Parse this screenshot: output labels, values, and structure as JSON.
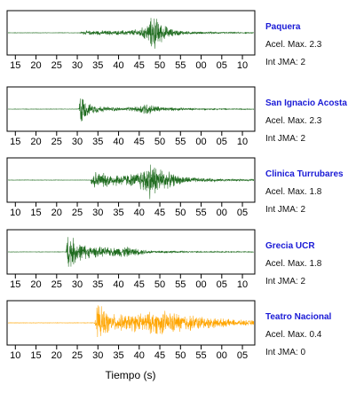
{
  "chart_data": {
    "type": "line",
    "xlabel": "Tiempo (s)",
    "accel_label": "Acel. Max.",
    "int_label": "Int JMA:",
    "x_unit": "seconds past the minute (wrapping at 60)",
    "panels": [
      {
        "station": "Paquera",
        "accel_max": "2.3",
        "int_jma": "2",
        "color": "#1e6b1e",
        "x_start": 13,
        "ticks": [
          "15",
          "20",
          "25",
          "30",
          "35",
          "40",
          "45",
          "50",
          "55",
          "00",
          "05",
          "10"
        ],
        "onset_s": 18.5,
        "envelope": [
          [
            17.5,
            0.01
          ],
          [
            18.5,
            0.09
          ],
          [
            20,
            0.11
          ],
          [
            23,
            0.12
          ],
          [
            27,
            0.11
          ],
          [
            29,
            0.14
          ],
          [
            31.5,
            0.18
          ],
          [
            33,
            0.3
          ],
          [
            34.5,
            0.55
          ],
          [
            35.2,
            0.95
          ],
          [
            36.2,
            0.75
          ],
          [
            37.5,
            0.45
          ],
          [
            40,
            0.18
          ],
          [
            44,
            0.08
          ],
          [
            50,
            0.04
          ],
          [
            60,
            0.02
          ]
        ]
      },
      {
        "station": "San Ignacio Acosta",
        "accel_max": "2.3",
        "int_jma": "2",
        "color": "#1e6b1e",
        "x_start": 13,
        "ticks": [
          "15",
          "20",
          "25",
          "30",
          "35",
          "40",
          "45",
          "50",
          "55",
          "00",
          "05",
          "10"
        ],
        "onset_s": 17.8,
        "envelope": [
          [
            17.3,
            0.01
          ],
          [
            17.8,
            0.95
          ],
          [
            18.5,
            0.55
          ],
          [
            20,
            0.25
          ],
          [
            24,
            0.12
          ],
          [
            28,
            0.08
          ],
          [
            31,
            0.12
          ],
          [
            33.5,
            0.33
          ],
          [
            35,
            0.22
          ],
          [
            38,
            0.1
          ],
          [
            44,
            0.05
          ],
          [
            50,
            0.03
          ],
          [
            60,
            0.02
          ]
        ]
      },
      {
        "station": "Clinica Turrubares",
        "accel_max": "1.8",
        "int_jma": "2",
        "color": "#1e6b1e",
        "x_start": 8,
        "ticks": [
          "10",
          "15",
          "20",
          "25",
          "30",
          "35",
          "40",
          "45",
          "50",
          "55",
          "00",
          "05"
        ],
        "onset_s": 20.6,
        "envelope": [
          [
            20.2,
            0.01
          ],
          [
            20.6,
            0.55
          ],
          [
            22,
            0.38
          ],
          [
            25,
            0.33
          ],
          [
            28,
            0.3
          ],
          [
            31,
            0.32
          ],
          [
            33,
            0.6
          ],
          [
            34.5,
            0.95
          ],
          [
            36.5,
            0.7
          ],
          [
            39,
            0.4
          ],
          [
            42,
            0.2
          ],
          [
            47,
            0.1
          ],
          [
            55,
            0.05
          ],
          [
            60,
            0.04
          ]
        ]
      },
      {
        "station": "Grecia UCR",
        "accel_max": "1.8",
        "int_jma": "2",
        "color": "#1e6b1e",
        "x_start": 13,
        "ticks": [
          "15",
          "20",
          "25",
          "30",
          "35",
          "40",
          "45",
          "50",
          "55",
          "00",
          "05",
          "10"
        ],
        "onset_s": 14.7,
        "envelope": [
          [
            14.2,
            0.01
          ],
          [
            14.7,
            0.95
          ],
          [
            15.8,
            0.75
          ],
          [
            17.5,
            0.45
          ],
          [
            20,
            0.3
          ],
          [
            23,
            0.24
          ],
          [
            26,
            0.22
          ],
          [
            28.5,
            0.28
          ],
          [
            31,
            0.18
          ],
          [
            35,
            0.08
          ],
          [
            45,
            0.03
          ],
          [
            60,
            0.02
          ]
        ]
      },
      {
        "station": "Teatro Nacional",
        "accel_max": "0.4",
        "int_jma": "0",
        "color": "#ffa500",
        "x_start": 8,
        "ticks": [
          "10",
          "15",
          "20",
          "25",
          "30",
          "35",
          "40",
          "45",
          "50",
          "55",
          "00",
          "05"
        ],
        "onset_s": 21.7,
        "envelope": [
          [
            21.2,
            0.01
          ],
          [
            21.7,
            0.9
          ],
          [
            23,
            0.75
          ],
          [
            25,
            0.45
          ],
          [
            28,
            0.4
          ],
          [
            31,
            0.45
          ],
          [
            35,
            0.55
          ],
          [
            38,
            0.6
          ],
          [
            41,
            0.5
          ],
          [
            45,
            0.38
          ],
          [
            50,
            0.26
          ],
          [
            55,
            0.16
          ],
          [
            60,
            0.12
          ]
        ]
      }
    ]
  }
}
